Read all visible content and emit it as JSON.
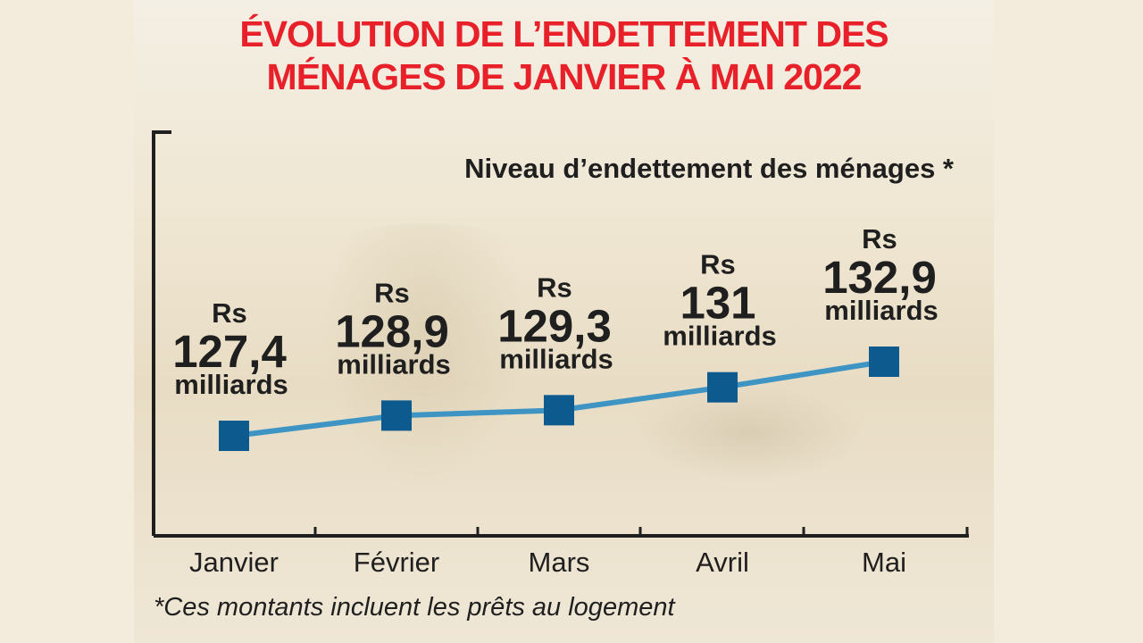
{
  "title_line1": "ÉVOLUTION DE L’ENDETTEMENT DES",
  "title_line2": "MÉNAGES DE JANVIER À MAI 2022",
  "footnote": "*Ces montants incluent les prêts au logement",
  "colors": {
    "title": "#e8202a",
    "line": "#3e95c3",
    "marker": "#0d5a8e",
    "text": "#1f1f1f"
  },
  "chart_data": {
    "type": "line",
    "title": "Niveau d’endettement des ménages *",
    "categories": [
      "Janvier",
      "Février",
      "Mars",
      "Avril",
      "Mai"
    ],
    "values": [
      127.4,
      128.9,
      129.3,
      131,
      132.9
    ],
    "value_labels": [
      "127,4",
      "128,9",
      "129,3",
      "131",
      "132,9"
    ],
    "currency": "Rs",
    "unit": "milliards",
    "xlabel": "",
    "ylabel": "",
    "ylim": [
      125,
      135
    ]
  }
}
